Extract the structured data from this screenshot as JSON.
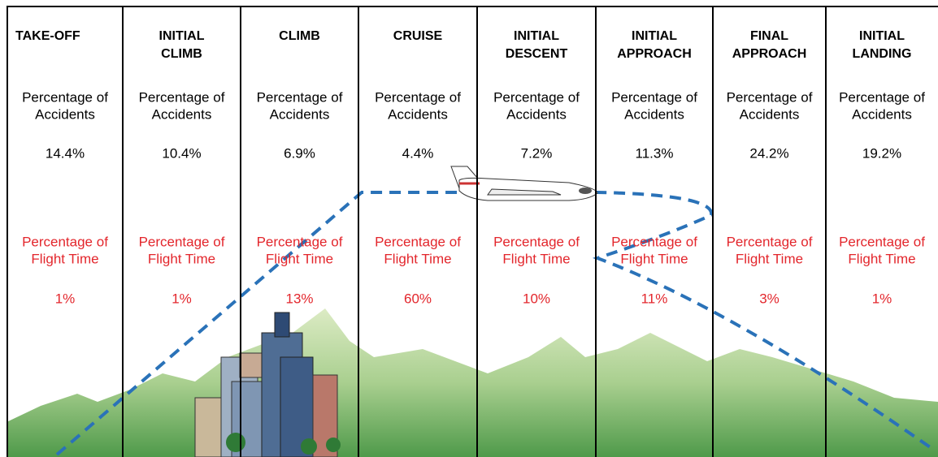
{
  "phases": [
    {
      "name": [
        "TAKE-OFF"
      ],
      "accidents_label": [
        "Percentage of",
        "Accidents"
      ],
      "accidents": "14.4%",
      "flight_time_label": [
        "Percentage of",
        "Flight Time"
      ],
      "flight_time": "1%"
    },
    {
      "name": [
        "INITIAL",
        "CLIMB"
      ],
      "accidents_label": [
        "Percentage of",
        "Accidents"
      ],
      "accidents": "10.4%",
      "flight_time_label": [
        "Percentage of",
        "Flight Time"
      ],
      "flight_time": "1%"
    },
    {
      "name": [
        "CLIMB"
      ],
      "accidents_label": [
        "Percentage of",
        "Accidents"
      ],
      "accidents": "6.9%",
      "flight_time_label": [
        "Percentage of",
        "Flight Time"
      ],
      "flight_time": "13%"
    },
    {
      "name": [
        "CRUISE"
      ],
      "accidents_label": [
        "Percentage of",
        "Accidents"
      ],
      "accidents": "4.4%",
      "flight_time_label": [
        "Percentage of",
        "Flight Time"
      ],
      "flight_time": "60%"
    },
    {
      "name": [
        "INITIAL",
        "DESCENT"
      ],
      "accidents_label": [
        "Percentage of",
        "Accidents"
      ],
      "accidents": "7.2%",
      "flight_time_label": [
        "Percentage of",
        "Flight Time"
      ],
      "flight_time": "10%"
    },
    {
      "name": [
        "INITIAL",
        "APPROACH"
      ],
      "accidents_label": [
        "Percentage of",
        "Accidents"
      ],
      "accidents": "11.3%",
      "flight_time_label": [
        "Percentage of",
        "Flight Time"
      ],
      "flight_time": "11%"
    },
    {
      "name": [
        "FINAL",
        "APPROACH"
      ],
      "accidents_label": [
        "Percentage of",
        "Accidents"
      ],
      "accidents": "24.2%",
      "flight_time_label": [
        "Percentage of",
        "Flight Time"
      ],
      "flight_time": "3%"
    },
    {
      "name": [
        "INITIAL",
        "LANDING"
      ],
      "accidents_label": [
        "Percentage of",
        "Accidents"
      ],
      "accidents": "19.2%",
      "flight_time_label": [
        "Percentage of",
        "Flight Time"
      ],
      "flight_time": "1%"
    }
  ]
}
